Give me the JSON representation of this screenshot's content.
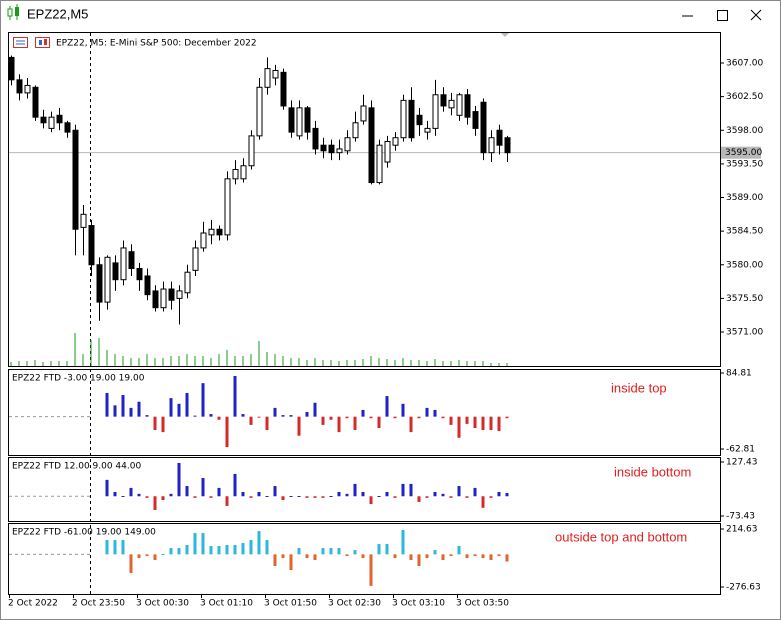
{
  "window": {
    "title": "EPZ22,M5"
  },
  "chart_data": [
    {
      "type": "candlestick",
      "title": "EPZ22, M5:  E-Mini S&P 500: December 2022",
      "categories": [
        "2 Oct 2022",
        null,
        null,
        null,
        null,
        null,
        null,
        null,
        "2 Oct 23:50",
        null,
        null,
        null,
        null,
        null,
        null,
        null,
        "3 Oct 00:30",
        null,
        null,
        null,
        null,
        null,
        null,
        null,
        "3 Oct 01:10",
        null,
        null,
        null,
        null,
        null,
        null,
        null,
        "3 Oct 01:50",
        null,
        null,
        null,
        null,
        null,
        null,
        null,
        "3 Oct 02:30",
        null,
        null,
        null,
        null,
        null,
        null,
        null,
        "3 Oct 03:10",
        null,
        null,
        null,
        null,
        null,
        null,
        null,
        "3 Oct 03:50",
        null,
        null,
        null,
        null,
        null,
        null
      ],
      "open": [
        3607.75,
        3604.75,
        3603.0,
        3603.75,
        3599.75,
        3598.25,
        3600.0,
        3599.0,
        3598.0,
        3585.0,
        3585.25,
        3580.0,
        3575.0,
        3580.25,
        3578.0,
        3581.75,
        3579.5,
        3578.5,
        3576.5,
        3574.25,
        3576.75,
        3575.5,
        3576.25,
        3579.25,
        3582.25,
        3584.0,
        3584.75,
        3584.0,
        3591.5,
        3591.5,
        3593.25,
        3597.25,
        3603.75,
        3605.0,
        3605.75,
        3601.0,
        3597.25,
        3601.0,
        3598.25,
        3596.0,
        3596.0,
        3595.0,
        3595.25,
        3597.0,
        3599.25,
        3601.0,
        3591.0,
        3593.75,
        3596.0,
        3597.0,
        3602.0,
        3600.0,
        3597.75,
        3598.25,
        3602.75,
        3601.0,
        3600.0,
        3602.75,
        3600.5,
        3601.75,
        3595.0,
        3598.0,
        3597.0
      ],
      "high": [
        3608.0,
        3605.5,
        3605.0,
        3604.0,
        3600.75,
        3600.5,
        3601.0,
        3599.25,
        3598.75,
        3588.0,
        3586.0,
        3581.0,
        3581.25,
        3581.25,
        3583.25,
        3582.75,
        3580.25,
        3579.5,
        3577.25,
        3577.75,
        3577.75,
        3577.25,
        3580.0,
        3583.25,
        3585.75,
        3586.0,
        3585.25,
        3592.5,
        3594.0,
        3594.25,
        3598.0,
        3605.0,
        3607.75,
        3606.75,
        3606.25,
        3602.0,
        3602.0,
        3601.25,
        3599.25,
        3597.0,
        3596.75,
        3596.75,
        3598.0,
        3600.5,
        3602.75,
        3602.0,
        3596.75,
        3597.25,
        3597.75,
        3602.75,
        3603.75,
        3601.0,
        3599.25,
        3604.75,
        3603.75,
        3603.0,
        3603.0,
        3603.5,
        3601.25,
        3602.25,
        3598.0,
        3598.75,
        3597.25
      ],
      "low": [
        3604.0,
        3602.0,
        3602.25,
        3599.25,
        3598.25,
        3597.75,
        3598.0,
        3597.0,
        3581.25,
        3581.25,
        3578.5,
        3572.5,
        3574.0,
        3576.5,
        3577.25,
        3578.5,
        3576.5,
        3575.25,
        3573.75,
        3573.75,
        3574.0,
        3572.0,
        3575.5,
        3578.5,
        3581.75,
        3582.75,
        3583.25,
        3583.25,
        3590.75,
        3591.0,
        3592.75,
        3596.75,
        3602.75,
        3604.0,
        3600.75,
        3597.0,
        3596.75,
        3596.75,
        3594.75,
        3594.25,
        3594.0,
        3594.0,
        3594.75,
        3596.5,
        3598.75,
        3590.75,
        3590.75,
        3593.0,
        3595.25,
        3596.5,
        3596.5,
        3597.25,
        3596.75,
        3597.25,
        3600.5,
        3600.0,
        3599.25,
        3598.75,
        3597.25,
        3594.0,
        3593.75,
        3594.75,
        3593.75
      ],
      "close": [
        3604.75,
        3603.0,
        3604.0,
        3599.75,
        3599.0,
        3599.75,
        3599.0,
        3597.75,
        3584.75,
        3586.75,
        3580.0,
        3575.0,
        3581.0,
        3578.0,
        3582.25,
        3579.5,
        3578.0,
        3576.0,
        3574.25,
        3576.75,
        3575.25,
        3576.5,
        3579.0,
        3582.25,
        3584.25,
        3584.75,
        3584.0,
        3591.5,
        3592.75,
        3593.25,
        3597.25,
        3603.75,
        3606.25,
        3606.0,
        3601.25,
        3597.75,
        3601.0,
        3597.75,
        3595.5,
        3595.25,
        3595.0,
        3595.5,
        3597.0,
        3599.0,
        3601.25,
        3591.0,
        3596.0,
        3596.5,
        3597.0,
        3602.0,
        3597.0,
        3598.75,
        3598.25,
        3602.75,
        3601.25,
        3602.0,
        3602.75,
        3599.75,
        3598.25,
        3595.0,
        3597.0,
        3596.0,
        3595.0
      ],
      "up_color": "#ffffff",
      "down_color": "#000000",
      "volume": {
        "color": "#1a9a1a",
        "values": [
          4,
          5,
          5,
          6,
          4,
          5,
          5,
          5,
          33,
          12,
          26,
          28,
          16,
          12,
          10,
          8,
          8,
          12,
          8,
          8,
          10,
          10,
          12,
          10,
          10,
          8,
          12,
          16,
          10,
          10,
          12,
          25,
          14,
          12,
          10,
          8,
          8,
          6,
          8,
          6,
          6,
          5,
          6,
          6,
          7,
          10,
          8,
          7,
          6,
          8,
          6,
          6,
          5,
          7,
          5,
          5,
          6,
          5,
          5,
          5,
          3,
          3,
          3
        ]
      },
      "ylim": [
        3566.45,
        3611.15
      ],
      "yticks": [
        {
          "value": 3607,
          "label": "3607.00"
        },
        {
          "value": 3602.5,
          "label": "3602.50"
        },
        {
          "value": 3598,
          "label": "3598.00"
        },
        {
          "value": 3593.5,
          "label": "3593.50"
        },
        {
          "value": 3589,
          "label": "3589.00"
        },
        {
          "value": 3584.5,
          "label": "3584.50"
        },
        {
          "value": 3580,
          "label": "3580.00"
        },
        {
          "value": 3575.5,
          "label": "3575.50"
        },
        {
          "value": 3571,
          "label": "3571.00"
        }
      ],
      "current_price": {
        "value": 3595,
        "label": "3595.00"
      }
    },
    {
      "type": "bar",
      "title": "EPZ22  FTD -3.00 19.00 19.00",
      "annotation": "inside top",
      "pos_color": "#1f22c8",
      "neg_color": "#d42a2a",
      "values": [
        null,
        null,
        null,
        null,
        null,
        null,
        null,
        null,
        null,
        null,
        null,
        null,
        46,
        22,
        42,
        17,
        29,
        3,
        -26,
        -30,
        36,
        25,
        46,
        2,
        65,
        5,
        -6,
        -59,
        79,
        5,
        -16,
        -1,
        -26,
        17,
        3,
        3,
        -37,
        9,
        27,
        -16,
        -6,
        -30,
        -3,
        -26,
        13,
        -3,
        -22,
        40,
        -3,
        25,
        -30,
        -3,
        17,
        13,
        -3,
        -16,
        -41,
        -14,
        -22,
        -26,
        -26,
        -28,
        -3
      ],
      "ylim": [
        -62.81,
        84.81
      ],
      "yticks": [
        {
          "value": 84.81,
          "label": "84.81"
        },
        {
          "value": -62.81,
          "label": "-62.81"
        }
      ]
    },
    {
      "type": "bar",
      "title": "EPZ22  FTD 12.00 9.00 44.00",
      "annotation": "inside bottom",
      "pos_color": "#1f22c8",
      "neg_color": "#d42a2a",
      "values": [
        null,
        null,
        null,
        null,
        null,
        null,
        null,
        null,
        null,
        null,
        null,
        null,
        61,
        16,
        1,
        31,
        9,
        -6,
        -51,
        -14,
        9,
        124,
        38,
        -6,
        68,
        -6,
        31,
        -36,
        83,
        16,
        -6,
        16,
        1,
        38,
        -14,
        1,
        1,
        -6,
        -6,
        -6,
        1,
        16,
        9,
        46,
        16,
        -29,
        1,
        16,
        -6,
        46,
        46,
        -21,
        -6,
        16,
        9,
        -6,
        38,
        -6,
        31,
        -43,
        -6,
        16,
        12
      ],
      "ylim": [
        -73.43,
        127.43
      ],
      "yticks": [
        {
          "value": 127.43,
          "label": "127.43"
        },
        {
          "value": -73.43,
          "label": "-73.43"
        }
      ]
    },
    {
      "type": "bar",
      "title": "EPZ22  FTD -61.00 19.00 149.00",
      "annotation": "outside top and bottom",
      "pos_color": "#2bb8d8",
      "neg_color": "#e2642c",
      "values": [
        null,
        null,
        null,
        null,
        null,
        null,
        null,
        null,
        null,
        null,
        null,
        null,
        121,
        121,
        121,
        -158,
        -31,
        -14,
        -48,
        3,
        53,
        53,
        79,
        180,
        180,
        70,
        70,
        79,
        79,
        96,
        121,
        197,
        121,
        -99,
        -31,
        -133,
        53,
        -31,
        -48,
        53,
        53,
        53,
        -14,
        36,
        -31,
        -267,
        87,
        87,
        -31,
        206,
        -48,
        -99,
        -31,
        36,
        -48,
        -14,
        70,
        -31,
        -14,
        -31,
        -48,
        -14,
        -61
      ],
      "ylim": [
        -276.63,
        214.63
      ],
      "yticks": [
        {
          "value": 214.63,
          "label": "214.63"
        },
        {
          "value": -276.63,
          "label": "-276.63"
        }
      ]
    }
  ]
}
